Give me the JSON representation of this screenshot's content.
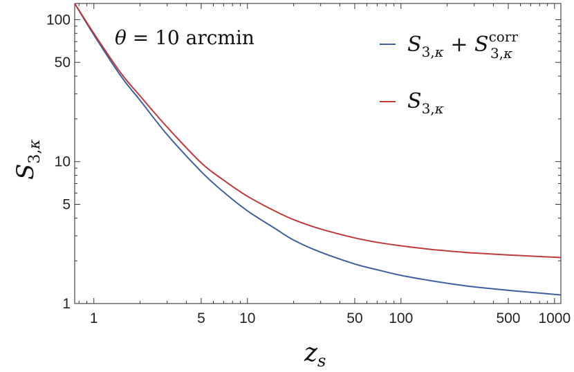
{
  "chart_data": {
    "type": "line",
    "xscale": "log",
    "yscale": "log",
    "xlim": [
      0.75,
      1100
    ],
    "ylim": [
      1,
      130
    ],
    "xlabel": "z_s",
    "ylabel": "S_{3,κ}",
    "annotation": "θ = 10 arcmin",
    "grid": false,
    "legend_position": "top-right",
    "x_ticks": [
      {
        "value": 1,
        "label": "1"
      },
      {
        "value": 5,
        "label": "5"
      },
      {
        "value": 10,
        "label": "10"
      },
      {
        "value": 50,
        "label": "50"
      },
      {
        "value": 100,
        "label": "100"
      },
      {
        "value": 500,
        "label": "500"
      },
      {
        "value": 1000,
        "label": "1000"
      }
    ],
    "y_ticks": [
      {
        "value": 1,
        "label": "1"
      },
      {
        "value": 5,
        "label": "5"
      },
      {
        "value": 10,
        "label": "10"
      },
      {
        "value": 50,
        "label": "50"
      },
      {
        "value": 100,
        "label": "100"
      }
    ],
    "series": [
      {
        "name": "S_{3,κ} + S_{3,κ}^{corr}",
        "color": "#3f5fa0",
        "x": [
          0.75,
          1,
          1.5,
          2,
          3,
          5,
          7,
          10,
          15,
          20,
          30,
          50,
          70,
          100,
          150,
          200,
          300,
          500,
          700,
          1000,
          1100
        ],
        "y": [
          130,
          78,
          40,
          27,
          15.5,
          8.5,
          6.1,
          4.5,
          3.4,
          2.8,
          2.3,
          1.9,
          1.73,
          1.58,
          1.46,
          1.39,
          1.31,
          1.24,
          1.2,
          1.16,
          1.15
        ]
      },
      {
        "name": "S_{3,κ}",
        "color": "#c0393a",
        "x": [
          0.75,
          1,
          1.5,
          2,
          3,
          5,
          7,
          10,
          15,
          20,
          30,
          50,
          70,
          100,
          150,
          200,
          300,
          500,
          700,
          1000,
          1100
        ],
        "y": [
          130,
          80,
          42,
          29,
          17.5,
          9.8,
          7.4,
          5.7,
          4.5,
          3.9,
          3.35,
          2.9,
          2.7,
          2.55,
          2.42,
          2.35,
          2.27,
          2.2,
          2.16,
          2.12,
          2.11
        ]
      }
    ]
  }
}
